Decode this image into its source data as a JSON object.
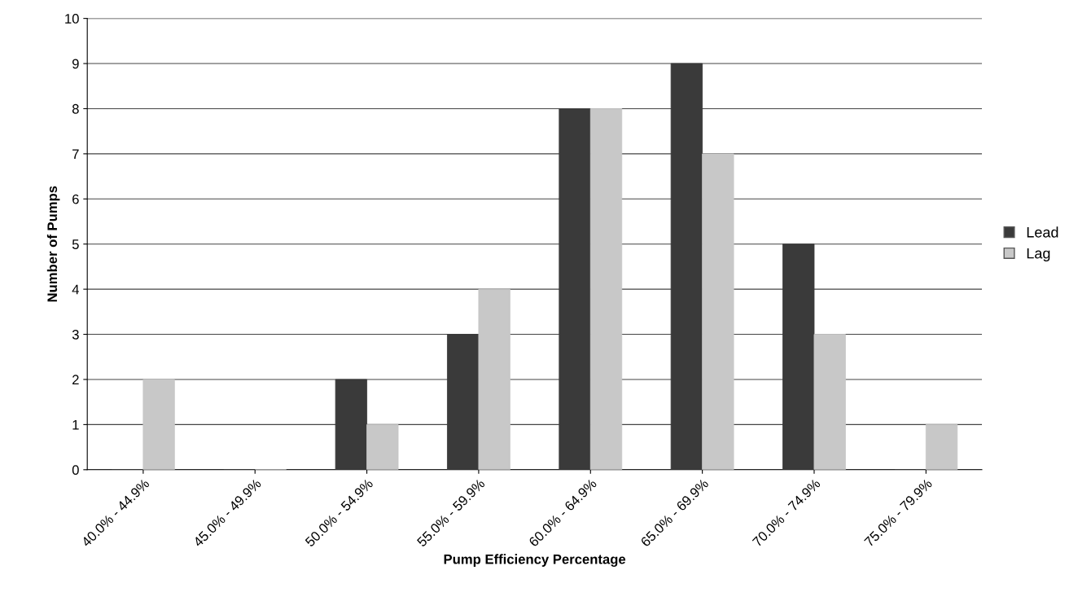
{
  "chart_data": {
    "type": "bar",
    "xlabel": "Pump Efficiency Percentage",
    "ylabel": "Number of Pumps",
    "categories": [
      "40.0% - 44.9%",
      "45.0% - 49.9%",
      "50.0% - 54.9%",
      "55.0% - 59.9%",
      "60.0% - 64.9%",
      "65.0% - 69.9%",
      "70.0% - 74.9%",
      "75.0% - 79.9%"
    ],
    "series": [
      {
        "name": "Lead",
        "color": "#3a3a3a",
        "values": [
          0,
          0,
          2,
          3,
          8,
          9,
          5,
          0
        ]
      },
      {
        "name": "Lag",
        "color": "#c8c8c8",
        "values": [
          2,
          0,
          1,
          4,
          8,
          7,
          3,
          1
        ]
      }
    ],
    "ylim": [
      0,
      10
    ],
    "yticks": [
      0,
      1,
      2,
      3,
      4,
      5,
      6,
      7,
      8,
      9,
      10
    ],
    "grid": "y",
    "legend": "right"
  }
}
